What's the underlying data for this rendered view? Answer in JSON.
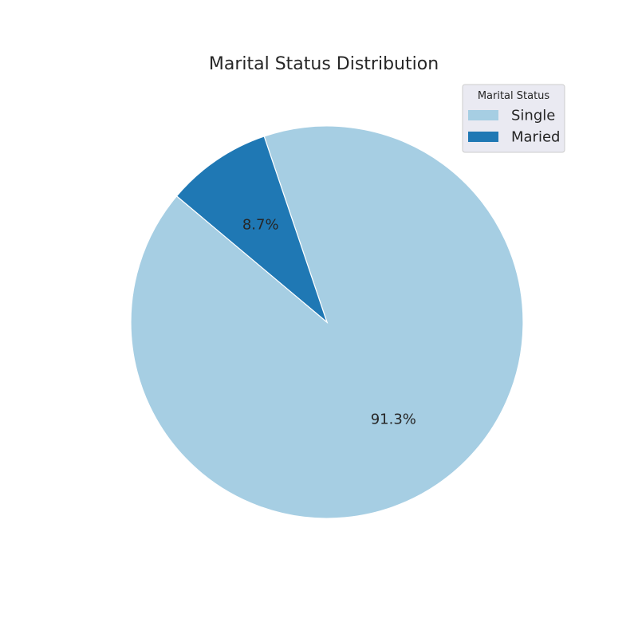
{
  "chart_data": {
    "type": "pie",
    "title": "Marital Status Distribution",
    "legend": {
      "title": "Marital Status",
      "position": "top-right"
    },
    "slices": [
      {
        "name": "Single",
        "value": 91.3,
        "label": "91.3%",
        "color": "#a6cee3"
      },
      {
        "name": "Maried",
        "value": 8.7,
        "label": "8.7%",
        "color": "#1f78b4"
      }
    ],
    "start_angle_deg": 140,
    "counterclock": true,
    "edge_color": "#ffffff",
    "legend_background": "#eaeaf2"
  }
}
